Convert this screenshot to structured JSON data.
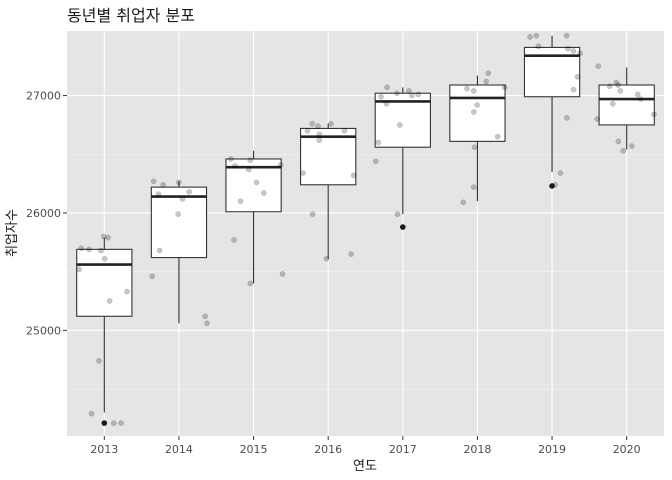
{
  "chart_data": {
    "type": "boxplot",
    "title": "동년별 취업자 분포",
    "xlabel": "연도",
    "ylabel": "취업자수",
    "ylim": [
      24100,
      27550
    ],
    "yticks": [
      25000,
      26000,
      27000
    ],
    "grid": true,
    "categories": [
      "2013",
      "2014",
      "2015",
      "2016",
      "2017",
      "2018",
      "2019",
      "2020"
    ],
    "boxes": [
      {
        "min": 24300,
        "q1": 25120,
        "median": 25560,
        "q3": 25690,
        "max": 25790,
        "outliers": [
          24210
        ]
      },
      {
        "min": 25060,
        "q1": 25620,
        "median": 26140,
        "q3": 26220,
        "max": 26270,
        "outliers": []
      },
      {
        "min": 25400,
        "q1": 26010,
        "median": 26390,
        "q3": 26460,
        "max": 26530,
        "outliers": []
      },
      {
        "min": 25610,
        "q1": 26240,
        "median": 26650,
        "q3": 26720,
        "max": 26760,
        "outliers": []
      },
      {
        "min": 25990,
        "q1": 26560,
        "median": 26950,
        "q3": 27020,
        "max": 27070,
        "outliers": [
          25880
        ]
      },
      {
        "min": 26100,
        "q1": 26610,
        "median": 26980,
        "q3": 27090,
        "max": 27170,
        "outliers": []
      },
      {
        "min": 26350,
        "q1": 26990,
        "median": 27340,
        "q3": 27410,
        "max": 27510,
        "outliers": [
          26230
        ]
      },
      {
        "min": 26540,
        "q1": 26750,
        "median": 26970,
        "q3": 27090,
        "max": 27240,
        "outliers": []
      }
    ],
    "jitter_points": [
      {
        "x": "2013",
        "values": [
          25800,
          25790,
          25700,
          25690,
          25680,
          25610,
          25520,
          25330,
          25250,
          24740,
          24290,
          24210,
          24210
        ]
      },
      {
        "x": "2014",
        "values": [
          26270,
          26260,
          26240,
          26180,
          26160,
          26120,
          25990,
          25680,
          25460,
          25120,
          25060
        ]
      },
      {
        "x": "2015",
        "values": [
          26460,
          26450,
          26410,
          26400,
          26370,
          26260,
          26170,
          26100,
          25770,
          25480,
          25400
        ]
      },
      {
        "x": "2016",
        "values": [
          26760,
          26760,
          26740,
          26700,
          26700,
          26670,
          26620,
          26340,
          26320,
          25990,
          25650,
          25610
        ]
      },
      {
        "x": "2017",
        "values": [
          27070,
          27040,
          27020,
          27010,
          27000,
          26990,
          26930,
          26750,
          26600,
          26440,
          25990
        ]
      },
      {
        "x": "2018",
        "values": [
          27190,
          27120,
          27070,
          27060,
          27040,
          26920,
          26860,
          26650,
          26560,
          26220,
          26090
        ]
      },
      {
        "x": "2019",
        "values": [
          27510,
          27510,
          27500,
          27420,
          27400,
          27380,
          27360,
          27160,
          27050,
          26810,
          26340,
          26240
        ]
      },
      {
        "x": "2020",
        "values": [
          27250,
          27110,
          27090,
          27080,
          27040,
          27010,
          26970,
          26930,
          26840,
          26800,
          26610,
          26570,
          26530
        ]
      }
    ]
  }
}
